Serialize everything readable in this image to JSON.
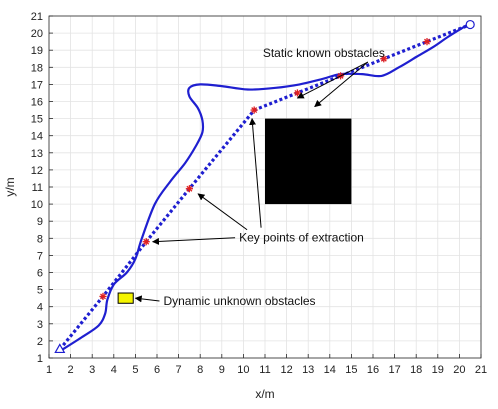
{
  "chart_data": {
    "type": "line",
    "xlabel": "x/m",
    "ylabel": "y/m",
    "xlim": [
      1,
      21
    ],
    "ylim": [
      1,
      21
    ],
    "x_ticks": [
      1,
      2,
      3,
      4,
      5,
      6,
      7,
      8,
      9,
      10,
      11,
      12,
      13,
      14,
      15,
      16,
      17,
      18,
      19,
      20,
      21
    ],
    "y_ticks": [
      1,
      2,
      3,
      4,
      5,
      6,
      7,
      8,
      9,
      10,
      11,
      12,
      13,
      14,
      15,
      16,
      17,
      18,
      19,
      20,
      21
    ],
    "grid": true,
    "colors": {
      "path": "#1f1fd0",
      "key_points": "#e02020",
      "static_obstacle": "#000000",
      "dynamic_obstacle": "#f5f500",
      "grid": "#e3e3e3"
    },
    "series": [
      {
        "style": "solid",
        "x": [
          1.5,
          2.5,
          3.3,
          3.6,
          3.7,
          4.0,
          4.6,
          5.0,
          5.3,
          5.9,
          6.6,
          7.3,
          7.8,
          8.1,
          8.1,
          7.9,
          7.5,
          7.5,
          8.0,
          9.0,
          10.2,
          11.5,
          12.6,
          13.6,
          14.5,
          15.5,
          16.4,
          17.2,
          18.0,
          18.8,
          19.5,
          20.4
        ],
        "y": [
          1.4,
          2.2,
          2.9,
          3.6,
          4.4,
          5.3,
          6.0,
          6.8,
          8.0,
          10.0,
          11.3,
          12.4,
          13.4,
          14.2,
          14.9,
          15.6,
          16.3,
          16.8,
          17.0,
          16.9,
          16.7,
          16.8,
          17.0,
          17.3,
          17.6,
          17.6,
          17.5,
          18.0,
          18.6,
          19.2,
          19.8,
          20.5
        ]
      },
      {
        "style": "dotted",
        "x": [
          1.5,
          3.5,
          5.5,
          7.5,
          10.5,
          12.5,
          14.5,
          16.5,
          18.5,
          20.5
        ],
        "y": [
          1.5,
          4.6,
          7.8,
          10.9,
          15.5,
          16.5,
          17.5,
          18.5,
          19.5,
          20.5
        ]
      }
    ],
    "key_points": {
      "x": [
        3.5,
        5.5,
        7.5,
        10.5,
        12.5,
        14.5,
        16.5,
        18.5
      ],
      "y": [
        4.6,
        7.8,
        10.9,
        15.5,
        16.5,
        17.5,
        18.5,
        19.5
      ]
    },
    "start_point": {
      "x": 1.5,
      "y": 1.5,
      "marker": "triangle"
    },
    "end_point": {
      "x": 20.5,
      "y": 20.5,
      "marker": "circle"
    },
    "static_obstacle": {
      "x_range": [
        11,
        15
      ],
      "y_range": [
        10,
        15
      ]
    },
    "dynamic_obstacle": {
      "x_range": [
        4.2,
        4.9
      ],
      "y_range": [
        4.2,
        4.8
      ]
    },
    "annotations": [
      {
        "text": "Static known obstacles",
        "at": [
          10.9,
          18.6
        ],
        "arrows_to": [
          [
            13.3,
            15.7
          ],
          [
            12.5,
            16.2
          ]
        ]
      },
      {
        "text": "Key points of extraction",
        "at": [
          9.8,
          7.8
        ],
        "arrows_to": [
          [
            5.8,
            7.8
          ],
          [
            7.9,
            10.6
          ],
          [
            10.4,
            15.0
          ]
        ]
      },
      {
        "text": "Dynamic unknown obstacles",
        "at": [
          6.3,
          4.1
        ],
        "arrows_to": [
          [
            5.0,
            4.5
          ]
        ]
      }
    ]
  }
}
